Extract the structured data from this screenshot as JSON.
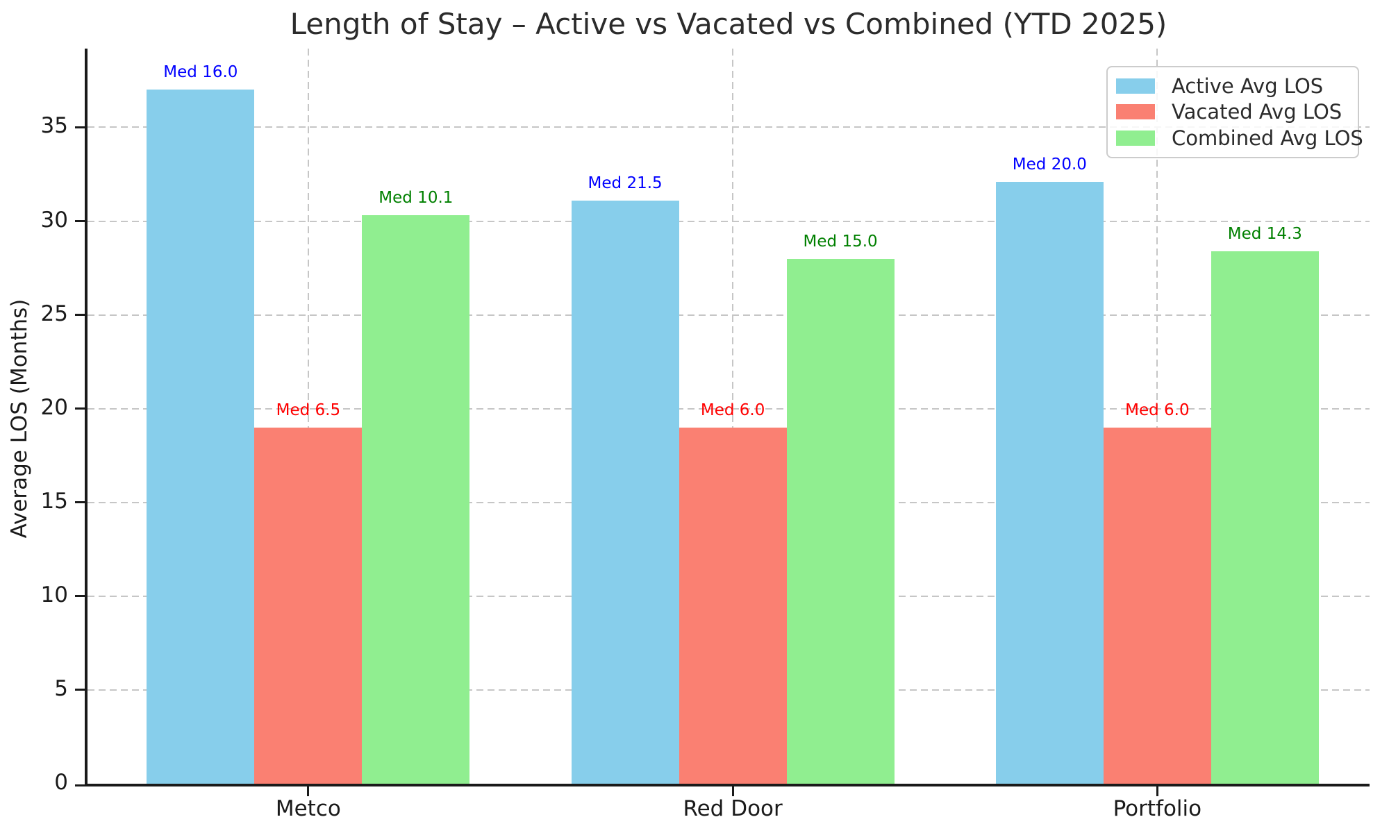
{
  "chart_data": {
    "type": "bar",
    "title": "Length of Stay – Active vs Vacated vs Combined (YTD 2025)",
    "xlabel": "",
    "ylabel": "Average LOS (Months)",
    "categories": [
      "Metco",
      "Red Door",
      "Portfolio"
    ],
    "series": [
      {
        "name": "Active Avg LOS",
        "color": "#87CEEB",
        "values": [
          37.0,
          31.1,
          32.1
        ],
        "annotations": [
          "Med 16.0",
          "Med 21.5",
          "Med 20.0"
        ],
        "annotation_color": "#0000FF"
      },
      {
        "name": "Vacated Avg LOS",
        "color": "#FA8072",
        "values": [
          19.0,
          19.0,
          19.0
        ],
        "annotations": [
          "Med 6.5",
          "Med 6.0",
          "Med 6.0"
        ],
        "annotation_color": "#FF0000"
      },
      {
        "name": "Combined Avg LOS",
        "color": "#90EE90",
        "values": [
          30.3,
          28.0,
          28.4
        ],
        "annotations": [
          "Med 10.1",
          "Med 15.0",
          "Med 14.3"
        ],
        "annotation_color": "#008000"
      }
    ],
    "yticks": [
      0,
      5,
      10,
      15,
      20,
      25,
      30,
      35
    ],
    "ylim": [
      0,
      39.2
    ],
    "grid": true,
    "grid_style": "dashed",
    "legend_position": "upper right",
    "colors": {
      "grid": "#c6c6c6",
      "axis": "#1a1a1a",
      "text": "#2b2b2b",
      "legend_border": "#cccccc"
    }
  }
}
